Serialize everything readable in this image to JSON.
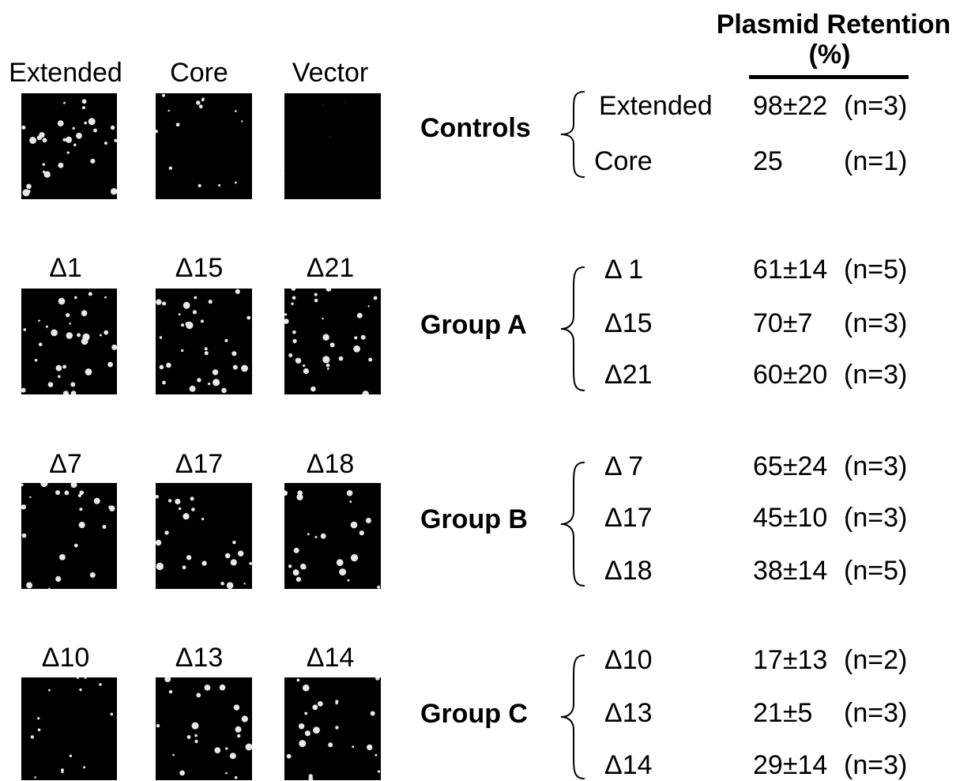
{
  "header": {
    "line1": "Plasmid Retention",
    "line2": "(%)"
  },
  "image_rows": [
    {
      "labels": [
        "Extended",
        "Core",
        "Vector"
      ],
      "colony_density": [
        "high",
        "low",
        "none"
      ]
    },
    {
      "labels": [
        "Δ1",
        "Δ15",
        "Δ21"
      ],
      "colony_density": [
        "high",
        "high",
        "high"
      ]
    },
    {
      "labels": [
        "Δ7",
        "Δ17",
        "Δ18"
      ],
      "colony_density": [
        "medium",
        "medium",
        "medium"
      ]
    },
    {
      "labels": [
        "Δ10",
        "Δ13",
        "Δ14"
      ],
      "colony_density": [
        "low",
        "medium",
        "medium"
      ]
    }
  ],
  "groups": [
    {
      "name": "Controls",
      "items": [
        {
          "label": "Extended",
          "value": "98±22",
          "n": "(n=3)"
        },
        {
          "label": "Core",
          "value": "25",
          "n": "(n=1)"
        }
      ]
    },
    {
      "name": "Group A",
      "items": [
        {
          "label": "Δ 1",
          "value": "61±14",
          "n": "(n=5)"
        },
        {
          "label": "Δ15",
          "value": "70±7",
          "n": "(n=3)"
        },
        {
          "label": "Δ21",
          "value": "60±20",
          "n": "(n=3)"
        }
      ]
    },
    {
      "name": "Group B",
      "items": [
        {
          "label": "Δ 7",
          "value": "65±24",
          "n": "(n=3)"
        },
        {
          "label": "Δ17",
          "value": "45±10",
          "n": "(n=3)"
        },
        {
          "label": "Δ18",
          "value": "38±14",
          "n": "(n=5)"
        }
      ]
    },
    {
      "name": "Group C",
      "items": [
        {
          "label": "Δ10",
          "value": "17±13",
          "n": "(n=2)"
        },
        {
          "label": "Δ13",
          "value": "21±5",
          "n": "(n=3)"
        },
        {
          "label": "Δ14",
          "value": "29±14",
          "n": "(n=3)"
        }
      ]
    }
  ]
}
